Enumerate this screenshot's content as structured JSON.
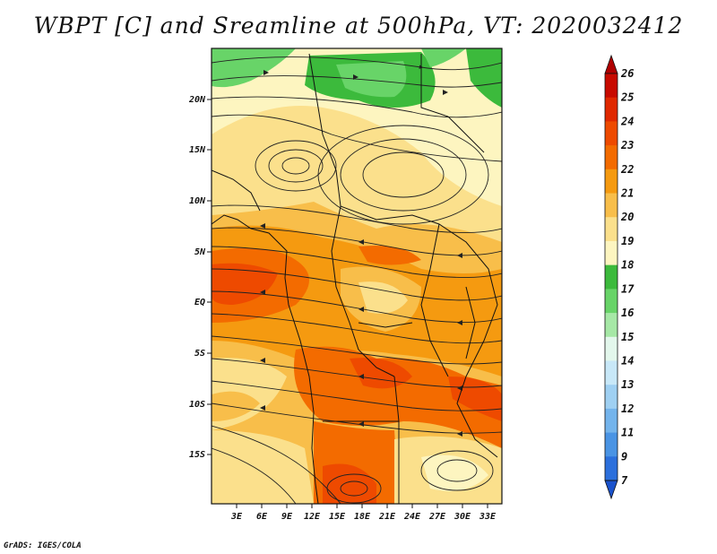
{
  "title": "WBPT [C] and Sreamline at 500hPa, VT: 2020032412",
  "credit": "GrADS: IGES/COLA",
  "axes": {
    "lon_labels": [
      "3E",
      "6E",
      "9E",
      "12E",
      "15E",
      "18E",
      "21E",
      "24E",
      "27E",
      "30E",
      "33E"
    ],
    "lat_labels": [
      "20N",
      "15N",
      "10N",
      "5N",
      "EQ",
      "5S",
      "10S",
      "15S"
    ]
  },
  "colorbar": {
    "levels": [
      "26",
      "25",
      "24",
      "23",
      "22",
      "21",
      "20",
      "19",
      "18",
      "17",
      "16",
      "15",
      "14",
      "13",
      "12",
      "11",
      "9",
      "7"
    ],
    "colors": [
      "#b00000",
      "#c80a00",
      "#e02800",
      "#ee4a00",
      "#f36b00",
      "#f59a10",
      "#f8be4a",
      "#fbe08c",
      "#fdf5c0",
      "#3cba3c",
      "#68d468",
      "#a6e8a6",
      "#e3f7ec",
      "#c8e8f8",
      "#9fd0f2",
      "#74b4ec",
      "#4a94e4",
      "#2c70dc",
      "#1a52cc"
    ]
  },
  "field": {
    "name": "WBPT [C]",
    "level": "500hPa",
    "valid_time": "2020032412"
  }
}
